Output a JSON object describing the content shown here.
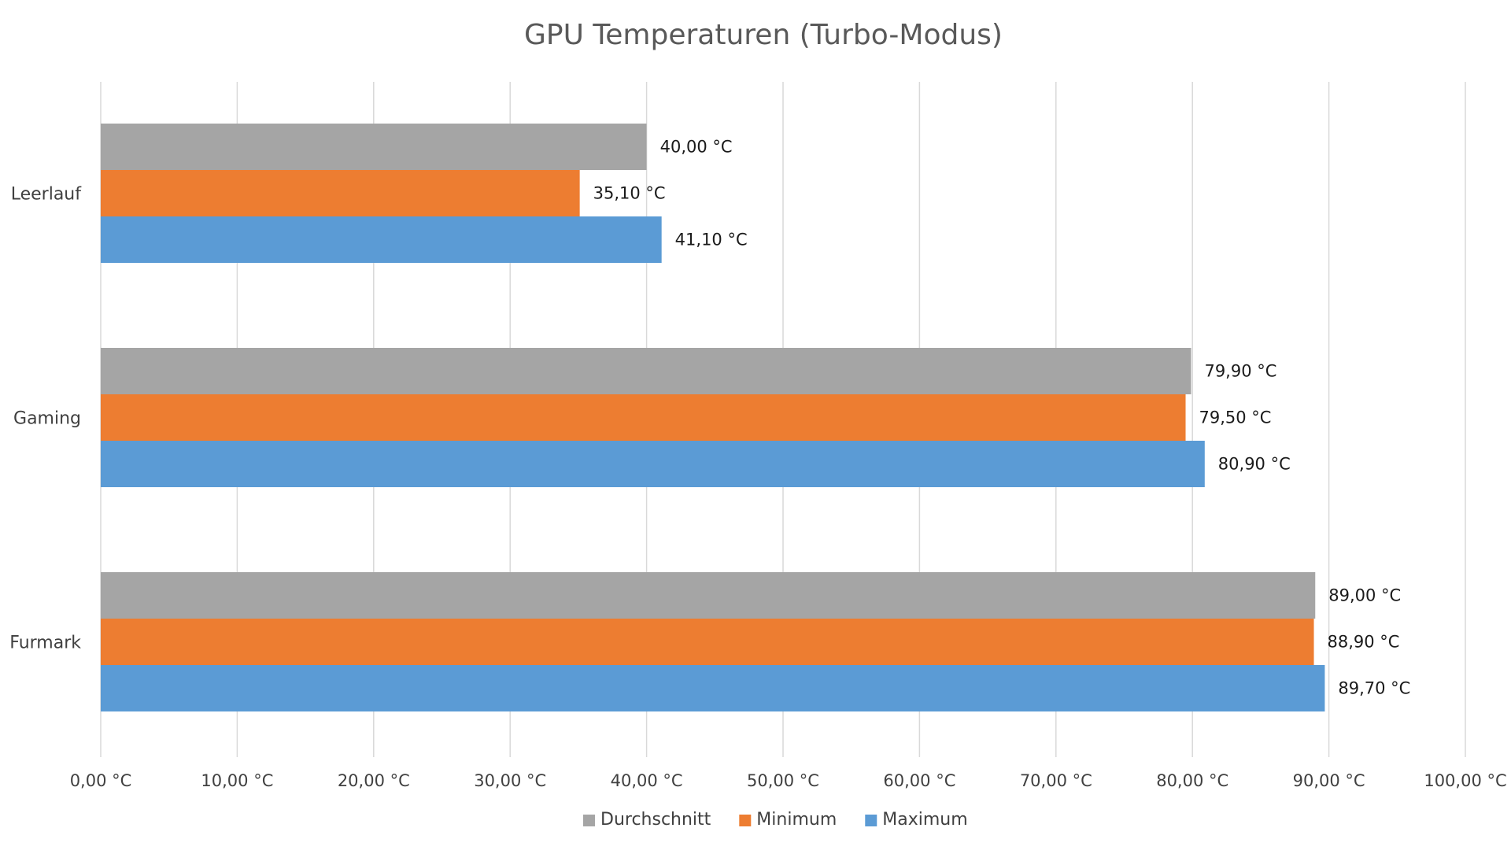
{
  "chart_data": {
    "type": "bar",
    "orientation": "horizontal",
    "title": "GPU Temperaturen (Turbo-Modus)",
    "categories": [
      "Leerlauf",
      "Gaming",
      "Furmark"
    ],
    "series": [
      {
        "name": "Durchschnitt",
        "color": "#a5a5a5",
        "values": [
          40.0,
          79.9,
          89.0
        ],
        "labels": [
          "40,00 °C",
          "79,90 °C",
          "89,00 °C"
        ]
      },
      {
        "name": "Minimum",
        "color": "#ed7d31",
        "values": [
          35.1,
          79.5,
          88.9
        ],
        "labels": [
          "35,10 °C",
          "79,50 °C",
          "88,90 °C"
        ]
      },
      {
        "name": "Maximum",
        "color": "#5b9bd5",
        "values": [
          41.1,
          80.9,
          89.7
        ],
        "labels": [
          "41,10 °C",
          "80,90 °C",
          "89,70 °C"
        ]
      }
    ],
    "xlim": [
      0,
      100
    ],
    "xticks": [
      0,
      10,
      20,
      30,
      40,
      50,
      60,
      70,
      80,
      90,
      100
    ],
    "xtick_labels": [
      "0,00 °C",
      "10,00 °C",
      "20,00 °C",
      "30,00 °C",
      "40,00 °C",
      "50,00 °C",
      "60,00 °C",
      "70,00 °C",
      "80,00 °C",
      "90,00 °C",
      "100,00 °C"
    ],
    "grid": "vertical",
    "legend": "bottom"
  }
}
